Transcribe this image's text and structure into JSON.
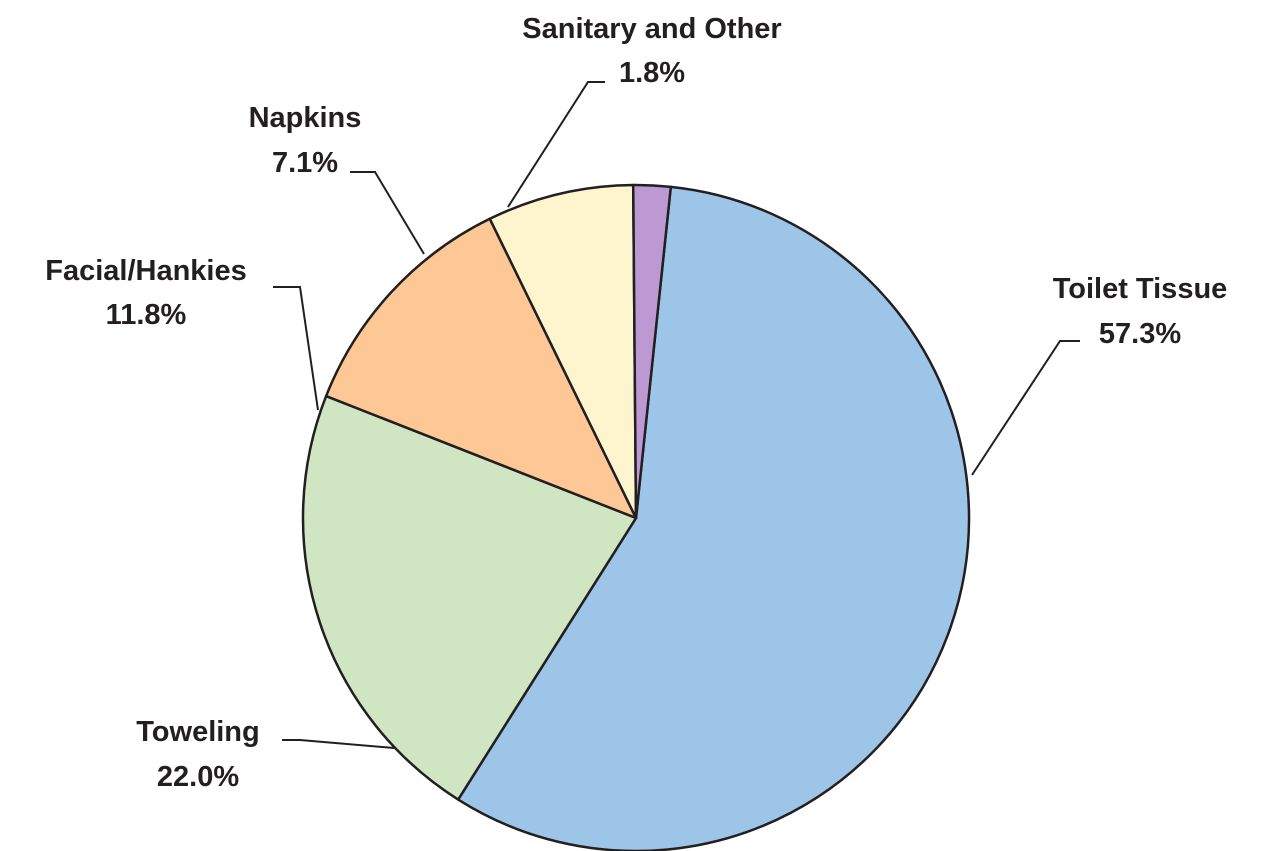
{
  "chart_data": {
    "type": "pie",
    "title": "",
    "slices": [
      {
        "label": "Toilet Tissue",
        "value": 57.3,
        "value_label": "57.3%",
        "color": "#9dc5e8"
      },
      {
        "label": "Toweling",
        "value": 22.0,
        "value_label": "22.0%",
        "color": "#d0e6c3"
      },
      {
        "label": "Facial/Hankies",
        "value": 11.8,
        "value_label": "11.8%",
        "color": "#fec896"
      },
      {
        "label": "Napkins",
        "value": 7.1,
        "value_label": "7.1%",
        "color": "#fcf5cd"
      },
      {
        "label": "Sanitary and Other",
        "value": 1.8,
        "value_label": "1.8%",
        "color": "#bc99d3"
      }
    ],
    "start": "top, clockwise",
    "legend": "none; slice labels with leader lines"
  }
}
